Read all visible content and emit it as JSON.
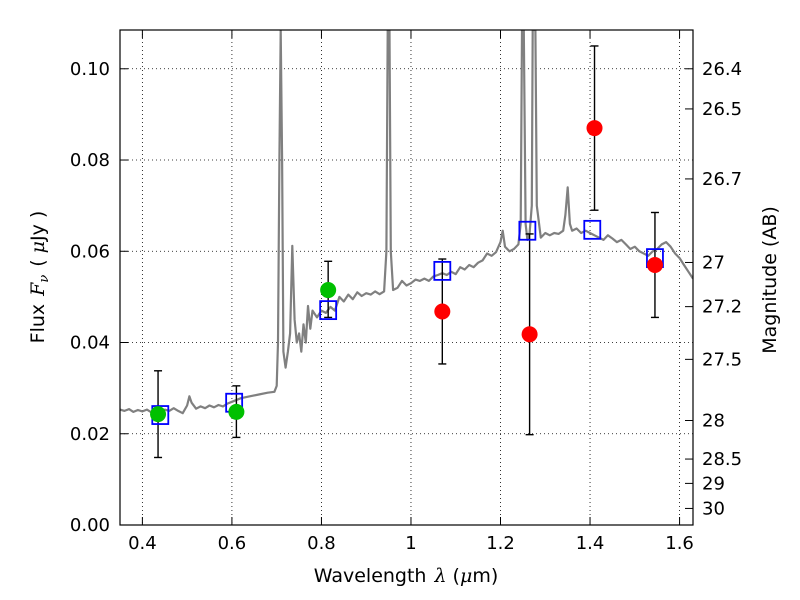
{
  "chart_data": {
    "type": "scatter",
    "title": "",
    "xlabel": "Wavelength",
    "xlabel_symbol": "λ",
    "xlabel_unit_open": "(",
    "xlabel_unit_mu": "μ",
    "xlabel_unit_rest": "m)",
    "ylabel": "Flux",
    "ylabel_symbol": "F",
    "ylabel_subscript": "ν",
    "ylabel_unit_open": "(",
    "ylabel_unit_mu": "μ",
    "ylabel_unit_rest": "Jy )",
    "y2label": "Magnitude (AB)",
    "xlim": [
      0.35,
      1.63
    ],
    "ylim": [
      0.0,
      0.1085
    ],
    "grid": true,
    "x_ticks": [
      {
        "value": 0.4,
        "label": "0.4"
      },
      {
        "value": 0.6,
        "label": "0.6"
      },
      {
        "value": 0.8,
        "label": "0.8"
      },
      {
        "value": 1.0,
        "label": "1"
      },
      {
        "value": 1.2,
        "label": "1.2"
      },
      {
        "value": 1.4,
        "label": "1.4"
      },
      {
        "value": 1.6,
        "label": "1.6"
      }
    ],
    "y_ticks": [
      {
        "value": 0.0,
        "label": "0.00"
      },
      {
        "value": 0.02,
        "label": "0.02"
      },
      {
        "value": 0.04,
        "label": "0.04"
      },
      {
        "value": 0.06,
        "label": "0.06"
      },
      {
        "value": 0.08,
        "label": "0.08"
      },
      {
        "value": 0.1,
        "label": "0.10"
      }
    ],
    "y2_ticks": [
      {
        "mag": 26.4,
        "label": "26.4"
      },
      {
        "mag": 26.5,
        "label": "26.5"
      },
      {
        "mag": 26.7,
        "label": "26.7"
      },
      {
        "mag": 27.0,
        "label": "27"
      },
      {
        "mag": 27.2,
        "label": "27.2"
      },
      {
        "mag": 27.5,
        "label": "27.5"
      },
      {
        "mag": 28.0,
        "label": "28"
      },
      {
        "mag": 28.5,
        "label": "28.5"
      },
      {
        "mag": 29.0,
        "label": "29"
      },
      {
        "mag": 30.0,
        "label": "30"
      }
    ],
    "model_spectrum": {
      "color": "#808080",
      "points": [
        [
          0.35,
          0.0253
        ],
        [
          0.36,
          0.025
        ],
        [
          0.37,
          0.0254
        ],
        [
          0.38,
          0.0248
        ],
        [
          0.39,
          0.0252
        ],
        [
          0.4,
          0.0249
        ],
        [
          0.41,
          0.0253
        ],
        [
          0.42,
          0.0247
        ],
        [
          0.43,
          0.0252
        ],
        [
          0.44,
          0.0246
        ],
        [
          0.45,
          0.0253
        ],
        [
          0.46,
          0.025
        ],
        [
          0.47,
          0.0256
        ],
        [
          0.48,
          0.025
        ],
        [
          0.49,
          0.0245
        ],
        [
          0.5,
          0.0262
        ],
        [
          0.505,
          0.0282
        ],
        [
          0.51,
          0.0268
        ],
        [
          0.52,
          0.0255
        ],
        [
          0.53,
          0.026
        ],
        [
          0.54,
          0.0256
        ],
        [
          0.55,
          0.0262
        ],
        [
          0.56,
          0.0258
        ],
        [
          0.57,
          0.0263
        ],
        [
          0.58,
          0.026
        ],
        [
          0.59,
          0.0266
        ],
        [
          0.6,
          0.027
        ],
        [
          0.62,
          0.0278
        ],
        [
          0.64,
          0.0282
        ],
        [
          0.66,
          0.0286
        ],
        [
          0.68,
          0.029
        ],
        [
          0.695,
          0.0292
        ],
        [
          0.7,
          0.0305
        ],
        [
          0.703,
          0.04
        ],
        [
          0.706,
          0.08
        ],
        [
          0.709,
          0.1085
        ],
        [
          0.712,
          0.08
        ],
        [
          0.715,
          0.038
        ],
        [
          0.72,
          0.0345
        ],
        [
          0.725,
          0.038
        ],
        [
          0.73,
          0.042
        ],
        [
          0.735,
          0.0612
        ],
        [
          0.74,
          0.045
        ],
        [
          0.745,
          0.04
        ],
        [
          0.75,
          0.042
        ],
        [
          0.755,
          0.038
        ],
        [
          0.76,
          0.044
        ],
        [
          0.765,
          0.04
        ],
        [
          0.77,
          0.048
        ],
        [
          0.775,
          0.043
        ],
        [
          0.78,
          0.047
        ],
        [
          0.79,
          0.0455
        ],
        [
          0.8,
          0.047
        ],
        [
          0.81,
          0.0465
        ],
        [
          0.82,
          0.0478
        ],
        [
          0.83,
          0.047
        ],
        [
          0.84,
          0.05
        ],
        [
          0.85,
          0.049
        ],
        [
          0.86,
          0.0505
        ],
        [
          0.87,
          0.0495
        ],
        [
          0.88,
          0.051
        ],
        [
          0.89,
          0.0502
        ],
        [
          0.9,
          0.0508
        ],
        [
          0.91,
          0.0505
        ],
        [
          0.92,
          0.0512
        ],
        [
          0.93,
          0.0506
        ],
        [
          0.94,
          0.0512
        ],
        [
          0.945,
          0.06
        ],
        [
          0.948,
          0.1085
        ],
        [
          0.952,
          0.1085
        ],
        [
          0.955,
          0.06
        ],
        [
          0.96,
          0.0515
        ],
        [
          0.97,
          0.052
        ],
        [
          0.98,
          0.0535
        ],
        [
          0.99,
          0.0525
        ],
        [
          1.0,
          0.053
        ],
        [
          1.01,
          0.0538
        ],
        [
          1.02,
          0.0535
        ],
        [
          1.03,
          0.054
        ],
        [
          1.04,
          0.0535
        ],
        [
          1.05,
          0.0545
        ],
        [
          1.06,
          0.0548
        ],
        [
          1.07,
          0.0552
        ],
        [
          1.08,
          0.0548
        ],
        [
          1.09,
          0.0555
        ],
        [
          1.1,
          0.055
        ],
        [
          1.11,
          0.0565
        ],
        [
          1.12,
          0.056
        ],
        [
          1.13,
          0.057
        ],
        [
          1.14,
          0.0565
        ],
        [
          1.15,
          0.0575
        ],
        [
          1.16,
          0.058
        ],
        [
          1.17,
          0.0595
        ],
        [
          1.18,
          0.059
        ],
        [
          1.19,
          0.0598
        ],
        [
          1.2,
          0.062
        ],
        [
          1.205,
          0.0645
        ],
        [
          1.21,
          0.061
        ],
        [
          1.22,
          0.06
        ],
        [
          1.23,
          0.0605
        ],
        [
          1.24,
          0.0615
        ],
        [
          1.245,
          0.066
        ],
        [
          1.248,
          0.1085
        ],
        [
          1.252,
          0.1085
        ],
        [
          1.256,
          0.066
        ],
        [
          1.26,
          0.0625
        ],
        [
          1.265,
          0.064
        ],
        [
          1.27,
          0.07
        ],
        [
          1.272,
          0.1085
        ],
        [
          1.278,
          0.1085
        ],
        [
          1.281,
          0.07
        ],
        [
          1.29,
          0.063
        ],
        [
          1.3,
          0.064
        ],
        [
          1.31,
          0.0635
        ],
        [
          1.32,
          0.064
        ],
        [
          1.33,
          0.0638
        ],
        [
          1.34,
          0.0645
        ],
        [
          1.345,
          0.068
        ],
        [
          1.35,
          0.074
        ],
        [
          1.355,
          0.066
        ],
        [
          1.36,
          0.0645
        ],
        [
          1.37,
          0.065
        ],
        [
          1.38,
          0.064
        ],
        [
          1.39,
          0.0645
        ],
        [
          1.4,
          0.064
        ],
        [
          1.41,
          0.0635
        ],
        [
          1.42,
          0.063
        ],
        [
          1.43,
          0.0625
        ],
        [
          1.44,
          0.0635
        ],
        [
          1.45,
          0.0628
        ],
        [
          1.46,
          0.062
        ],
        [
          1.47,
          0.0625
        ],
        [
          1.48,
          0.0615
        ],
        [
          1.49,
          0.0605
        ],
        [
          1.5,
          0.061
        ],
        [
          1.51,
          0.06
        ],
        [
          1.52,
          0.0595
        ],
        [
          1.53,
          0.059
        ],
        [
          1.54,
          0.06
        ],
        [
          1.55,
          0.0605
        ],
        [
          1.56,
          0.0615
        ],
        [
          1.57,
          0.062
        ],
        [
          1.58,
          0.061
        ],
        [
          1.59,
          0.0595
        ],
        [
          1.6,
          0.0585
        ],
        [
          1.61,
          0.057
        ],
        [
          1.62,
          0.0555
        ],
        [
          1.63,
          0.054
        ]
      ]
    },
    "series": [
      {
        "marker": "square",
        "color": "#0000ff",
        "points": [
          {
            "x": 0.44,
            "y": 0.0241
          },
          {
            "x": 0.605,
            "y": 0.0268
          },
          {
            "x": 0.815,
            "y": 0.0471
          },
          {
            "x": 1.07,
            "y": 0.0557
          },
          {
            "x": 1.26,
            "y": 0.0645
          },
          {
            "x": 1.405,
            "y": 0.0647
          },
          {
            "x": 1.545,
            "y": 0.0585
          }
        ]
      },
      {
        "marker": "circle",
        "color": "#00c000",
        "points": [
          {
            "x": 0.435,
            "y": 0.0243,
            "yerr_low": 0.0148,
            "yerr_high": 0.0338
          },
          {
            "x": 0.61,
            "y": 0.0248,
            "yerr_low": 0.0192,
            "yerr_high": 0.0305
          },
          {
            "x": 0.815,
            "y": 0.0515,
            "yerr_low": 0.0455,
            "yerr_high": 0.0578
          }
        ]
      },
      {
        "marker": "circle",
        "color": "#ff0000",
        "points": [
          {
            "x": 1.07,
            "y": 0.0468,
            "yerr_low": 0.0353,
            "yerr_high": 0.0583
          },
          {
            "x": 1.265,
            "y": 0.0418,
            "yerr_low": 0.0198,
            "yerr_high": 0.0638
          },
          {
            "x": 1.41,
            "y": 0.087,
            "yerr_low": 0.069,
            "yerr_high": 0.105
          },
          {
            "x": 1.545,
            "y": 0.057,
            "yerr_low": 0.0455,
            "yerr_high": 0.0685
          }
        ]
      }
    ]
  }
}
